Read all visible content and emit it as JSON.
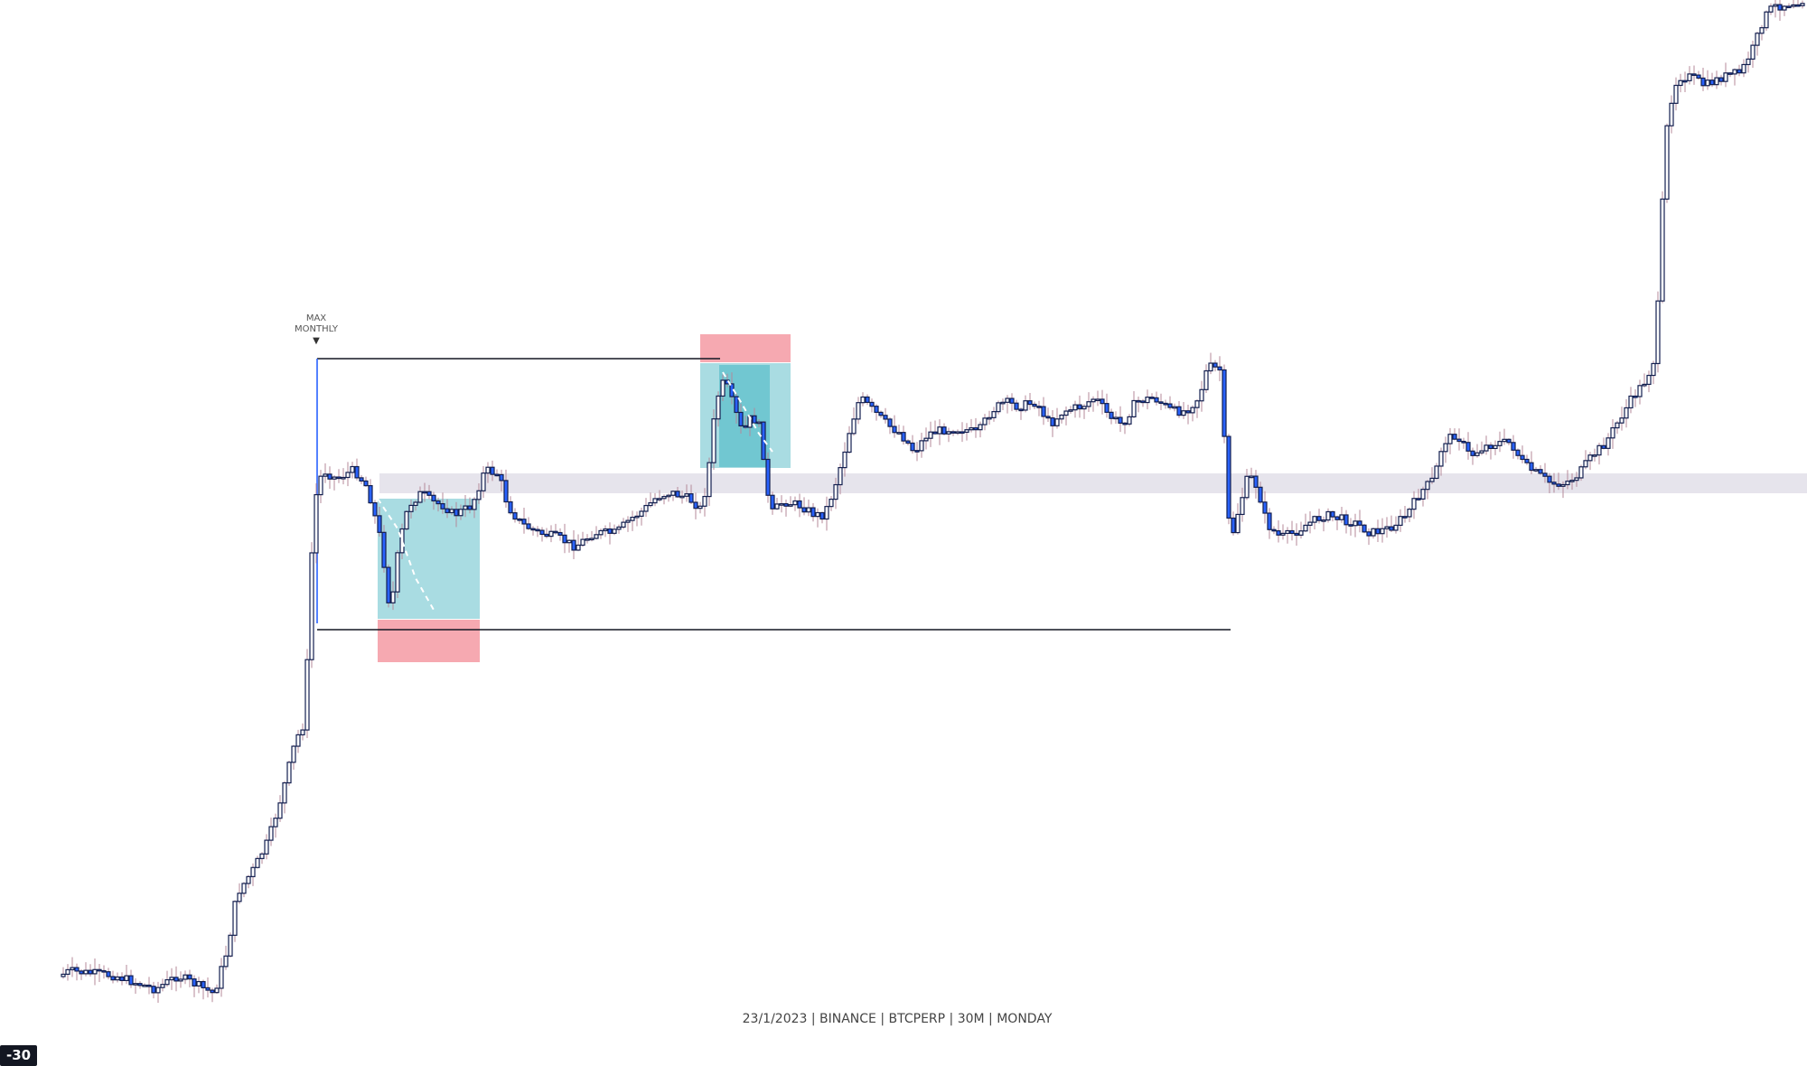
{
  "watermark": "23/1/2023 | BINANCE | BTCPERP | 30M | MONDAY",
  "marker": {
    "line1": "MAX",
    "line2": "MONTHLY",
    "arrow": "▼"
  },
  "axis_corner_label": "-30",
  "colors": {
    "background": "#ffffff",
    "candle_up_fill": "#ffffff",
    "candle_up_border": "#131f4f",
    "candle_down_fill": "#2962ff",
    "wick": "#b48a9a",
    "range_line": "#131722",
    "zone_band": "#e6e4ec",
    "target_box": "#a9dce2",
    "target_box_dark": "#5fc0cb",
    "stop_box": "#f6a9b1",
    "dashed_path": "#ffffff"
  },
  "chart_data": {
    "type": "candlestick",
    "title": "",
    "xlabel": "",
    "ylabel": "",
    "grid": false,
    "legend": "none",
    "trend_path": [
      [
        0,
        1130
      ],
      [
        40,
        1095
      ],
      [
        80,
        1075
      ],
      [
        130,
        1080
      ],
      [
        175,
        1095
      ],
      [
        200,
        1080
      ],
      [
        240,
        1100
      ],
      [
        255,
        1050
      ],
      [
        265,
        990
      ],
      [
        285,
        960
      ],
      [
        300,
        930
      ],
      [
        315,
        880
      ],
      [
        330,
        820
      ],
      [
        340,
        800
      ],
      [
        345,
        690
      ],
      [
        350,
        560
      ],
      [
        360,
        520
      ],
      [
        375,
        530
      ],
      [
        395,
        520
      ],
      [
        410,
        540
      ],
      [
        425,
        600
      ],
      [
        435,
        680
      ],
      [
        445,
        600
      ],
      [
        455,
        560
      ],
      [
        470,
        545
      ],
      [
        480,
        555
      ],
      [
        495,
        560
      ],
      [
        505,
        570
      ],
      [
        525,
        560
      ],
      [
        540,
        520
      ],
      [
        555,
        525
      ],
      [
        565,
        560
      ],
      [
        580,
        580
      ],
      [
        600,
        590
      ],
      [
        620,
        595
      ],
      [
        640,
        605
      ],
      [
        660,
        590
      ],
      [
        685,
        590
      ],
      [
        700,
        575
      ],
      [
        715,
        565
      ],
      [
        730,
        550
      ],
      [
        745,
        545
      ],
      [
        760,
        550
      ],
      [
        770,
        555
      ],
      [
        780,
        565
      ],
      [
        790,
        500
      ],
      [
        795,
        445
      ],
      [
        805,
        420
      ],
      [
        815,
        450
      ],
      [
        825,
        480
      ],
      [
        835,
        460
      ],
      [
        845,
        475
      ],
      [
        855,
        570
      ],
      [
        870,
        555
      ],
      [
        890,
        560
      ],
      [
        905,
        570
      ],
      [
        915,
        570
      ],
      [
        925,
        545
      ],
      [
        935,
        510
      ],
      [
        945,
        470
      ],
      [
        955,
        440
      ],
      [
        970,
        455
      ],
      [
        985,
        470
      ],
      [
        1000,
        480
      ],
      [
        1015,
        500
      ],
      [
        1030,
        480
      ],
      [
        1050,
        475
      ],
      [
        1070,
        475
      ],
      [
        1085,
        480
      ],
      [
        1100,
        455
      ],
      [
        1115,
        445
      ],
      [
        1130,
        450
      ],
      [
        1150,
        445
      ],
      [
        1165,
        470
      ],
      [
        1180,
        455
      ],
      [
        1200,
        450
      ],
      [
        1215,
        440
      ],
      [
        1230,
        460
      ],
      [
        1245,
        470
      ],
      [
        1260,
        445
      ],
      [
        1280,
        440
      ],
      [
        1300,
        455
      ],
      [
        1315,
        455
      ],
      [
        1330,
        440
      ],
      [
        1340,
        405
      ],
      [
        1355,
        410
      ],
      [
        1360,
        540
      ],
      [
        1365,
        600
      ],
      [
        1375,
        560
      ],
      [
        1385,
        525
      ],
      [
        1395,
        540
      ],
      [
        1405,
        580
      ],
      [
        1420,
        595
      ],
      [
        1435,
        590
      ],
      [
        1450,
        580
      ],
      [
        1470,
        570
      ],
      [
        1490,
        575
      ],
      [
        1505,
        580
      ],
      [
        1520,
        590
      ],
      [
        1540,
        585
      ],
      [
        1560,
        570
      ],
      [
        1575,
        545
      ],
      [
        1590,
        530
      ],
      [
        1600,
        490
      ],
      [
        1615,
        480
      ],
      [
        1630,
        505
      ],
      [
        1645,
        495
      ],
      [
        1660,
        490
      ],
      [
        1675,
        490
      ],
      [
        1690,
        515
      ],
      [
        1705,
        525
      ],
      [
        1720,
        535
      ],
      [
        1735,
        535
      ],
      [
        1750,
        525
      ],
      [
        1765,
        505
      ],
      [
        1780,
        490
      ],
      [
        1795,
        465
      ],
      [
        1810,
        440
      ],
      [
        1825,
        420
      ],
      [
        1835,
        395
      ],
      [
        1840,
        300
      ],
      [
        1845,
        175
      ],
      [
        1850,
        120
      ],
      [
        1860,
        85
      ],
      [
        1875,
        85
      ],
      [
        1890,
        95
      ],
      [
        1910,
        85
      ],
      [
        1930,
        80
      ],
      [
        1945,
        50
      ],
      [
        1955,
        20
      ],
      [
        1965,
        8
      ],
      [
        2000,
        0
      ]
    ],
    "annotations": {
      "range_high": 0.7,
      "range_low": 0.3
    }
  }
}
